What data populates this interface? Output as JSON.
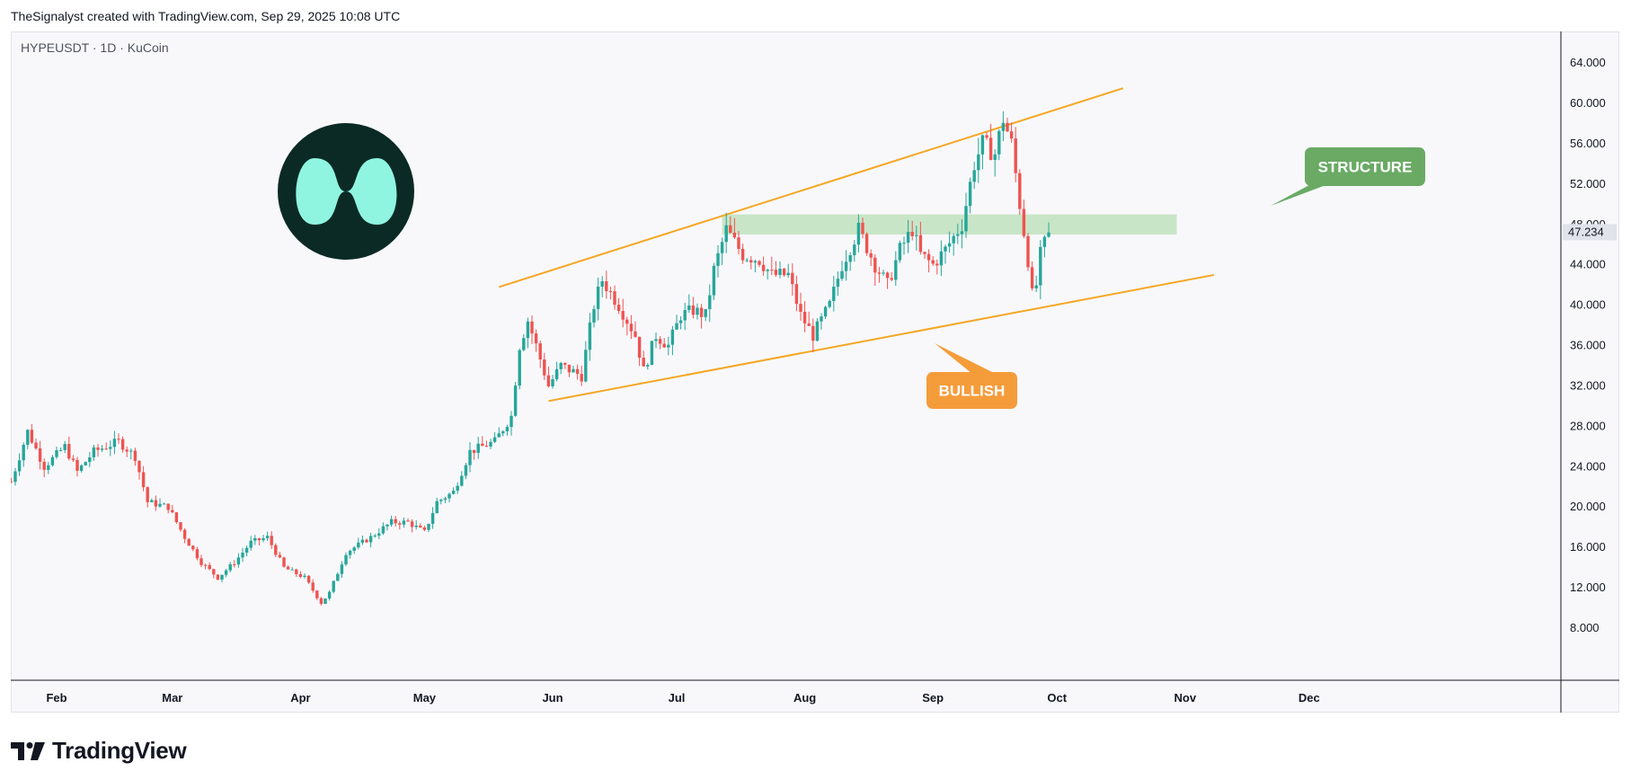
{
  "attribution": "TheSignalyst created with TradingView.com, Sep 29, 2025 10:08 UTC",
  "symbol_line": "HYPEUSDT · 1D · KuCoin",
  "footer_brand": "TradingView",
  "colors": {
    "up": "#26a69a",
    "down": "#ef5350",
    "channel": "#f5a623",
    "zone": "#b9dfb5",
    "structure_callout": "#6aaa64",
    "bullish_callout": "#f59c3a",
    "logo_bg": "#0b2a25",
    "logo_mark": "#8ff5e0"
  },
  "chart_data": {
    "type": "candlestick",
    "symbol": "HYPEUSDT",
    "interval": "1D",
    "exchange": "KuCoin",
    "ylim": [
      4,
      65
    ],
    "y_ticks": [
      "64.000",
      "60.000",
      "56.000",
      "52.000",
      "48.000",
      "44.000",
      "40.000",
      "36.000",
      "32.000",
      "28.000",
      "24.000",
      "20.000",
      "16.000",
      "12.000",
      "8.000"
    ],
    "x_ticks": [
      "Feb",
      "Mar",
      "Apr",
      "May",
      "Jun",
      "Jul",
      "Aug",
      "Sep",
      "Oct",
      "Nov",
      "Dec"
    ],
    "last_price": "47.234",
    "waypoints": [
      [
        "Jan 21",
        22.5
      ],
      [
        "Jan 25",
        27.5
      ],
      [
        "Jan 29",
        24.0
      ],
      [
        "Feb 03",
        26.0
      ],
      [
        "Feb 06",
        23.5
      ],
      [
        "Feb 10",
        25.5
      ],
      [
        "Feb 16",
        26.5
      ],
      [
        "Feb 20",
        25.0
      ],
      [
        "Feb 23",
        20.5
      ],
      [
        "Feb 28",
        20.0
      ],
      [
        "Mar 04",
        17.0
      ],
      [
        "Mar 08",
        14.5
      ],
      [
        "Mar 12",
        13.0
      ],
      [
        "Mar 16",
        14.5
      ],
      [
        "Mar 20",
        16.5
      ],
      [
        "Mar 24",
        17.0
      ],
      [
        "Mar 28",
        14.0
      ],
      [
        "Apr 02",
        13.0
      ],
      [
        "Apr 06",
        10.5
      ],
      [
        "Apr 08",
        11.5
      ],
      [
        "Apr 12",
        15.5
      ],
      [
        "Apr 18",
        17.0
      ],
      [
        "Apr 23",
        18.5
      ],
      [
        "Apr 27",
        18.5
      ],
      [
        "May 01",
        17.5
      ],
      [
        "May 04",
        20.5
      ],
      [
        "May 08",
        21.5
      ],
      [
        "May 12",
        25.5
      ],
      [
        "May 18",
        26.5
      ],
      [
        "May 22",
        29.0
      ],
      [
        "May 24",
        36.0
      ],
      [
        "May 26",
        38.5
      ],
      [
        "May 28",
        36.0
      ],
      [
        "May 31",
        32.0
      ],
      [
        "Jun 03",
        34.0
      ],
      [
        "Jun 08",
        33.0
      ],
      [
        "Jun 11",
        40.0
      ],
      [
        "Jun 13",
        42.5
      ],
      [
        "Jun 17",
        40.0
      ],
      [
        "Jun 21",
        37.0
      ],
      [
        "Jun 23",
        33.5
      ],
      [
        "Jun 26",
        37.0
      ],
      [
        "Jun 29",
        36.0
      ],
      [
        "Jul 02",
        39.0
      ],
      [
        "Jul 05",
        39.5
      ],
      [
        "Jul 08",
        39.0
      ],
      [
        "Jul 10",
        43.5
      ],
      [
        "Jul 13",
        47.5
      ],
      [
        "Jul 17",
        45.0
      ],
      [
        "Jul 21",
        44.5
      ],
      [
        "Jul 24",
        43.0
      ],
      [
        "Jul 28",
        43.0
      ],
      [
        "Jul 31",
        39.0
      ],
      [
        "Aug 03",
        37.0
      ],
      [
        "Aug 07",
        40.0
      ],
      [
        "Aug 10",
        44.0
      ],
      [
        "Aug 14",
        47.5
      ],
      [
        "Aug 18",
        44.0
      ],
      [
        "Aug 21",
        42.0
      ],
      [
        "Aug 24",
        45.5
      ],
      [
        "Aug 27",
        47.5
      ],
      [
        "Aug 29",
        45.0
      ],
      [
        "Sep 01",
        44.0
      ],
      [
        "Sep 04",
        45.5
      ],
      [
        "Sep 08",
        48.0
      ],
      [
        "Sep 11",
        54.0
      ],
      [
        "Sep 13",
        56.0
      ],
      [
        "Sep 16",
        55.0
      ],
      [
        "Sep 18",
        58.5
      ],
      [
        "Sep 20",
        56.0
      ],
      [
        "Sep 22",
        50.0
      ],
      [
        "Sep 24",
        44.5
      ],
      [
        "Sep 25",
        41.0
      ],
      [
        "Sep 26",
        42.0
      ],
      [
        "Sep 27",
        45.0
      ],
      [
        "Sep 29",
        47.2
      ]
    ],
    "annotations": {
      "channel_upper": {
        "from": [
          "May 19",
          41.8
        ],
        "to": [
          "Oct 17",
          61.5
        ]
      },
      "channel_lower": {
        "from": [
          "May 31",
          30.5
        ],
        "to": [
          "Nov 08",
          43.0
        ]
      },
      "structure_zone": {
        "from": "Jul 12",
        "to": "Oct 30",
        "low": 47.0,
        "high": 49.0
      },
      "structure_label": "STRUCTURE",
      "bullish_label": "BULLISH"
    }
  }
}
